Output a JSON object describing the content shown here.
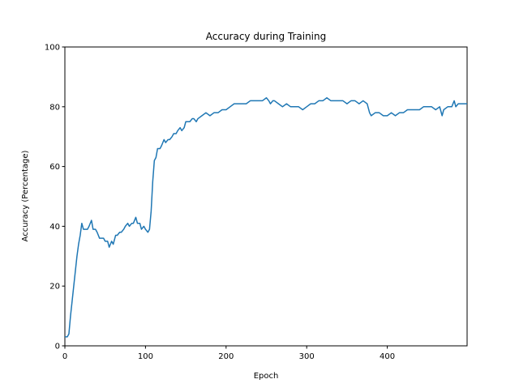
{
  "chart_data": {
    "type": "line",
    "title": "Accuracy during Training",
    "x_label": "Epoch",
    "y_label": "Accuracy (Percentage)",
    "color": "#1f77b4",
    "xlim": [
      0,
      499
    ],
    "ylim": [
      0,
      100
    ],
    "xticks": [
      0,
      100,
      200,
      300,
      400
    ],
    "yticks": [
      0,
      20,
      40,
      60,
      80,
      100
    ],
    "x": [
      0,
      3,
      5,
      7,
      9,
      11,
      13,
      15,
      17,
      19,
      21,
      23,
      25,
      28,
      30,
      33,
      35,
      38,
      40,
      43,
      45,
      48,
      50,
      53,
      55,
      58,
      60,
      63,
      65,
      68,
      70,
      73,
      75,
      78,
      80,
      83,
      85,
      88,
      90,
      93,
      95,
      98,
      100,
      103,
      105,
      107,
      109,
      111,
      113,
      115,
      118,
      120,
      123,
      125,
      128,
      130,
      133,
      135,
      138,
      140,
      143,
      145,
      148,
      150,
      155,
      158,
      160,
      163,
      165,
      170,
      175,
      180,
      185,
      190,
      195,
      200,
      205,
      210,
      215,
      220,
      225,
      230,
      235,
      240,
      245,
      250,
      253,
      255,
      258,
      260,
      265,
      270,
      275,
      280,
      285,
      290,
      295,
      300,
      305,
      310,
      315,
      320,
      325,
      330,
      335,
      340,
      345,
      350,
      355,
      360,
      365,
      370,
      375,
      378,
      380,
      385,
      390,
      395,
      400,
      405,
      410,
      415,
      420,
      425,
      430,
      435,
      440,
      445,
      450,
      455,
      460,
      465,
      468,
      470,
      475,
      480,
      483,
      485,
      488,
      490,
      495,
      499
    ],
    "values": [
      3,
      3,
      4,
      10,
      15,
      20,
      25,
      30,
      34,
      37,
      41,
      39,
      39,
      39,
      40,
      42,
      39,
      39,
      38,
      36,
      36,
      36,
      35,
      35,
      33,
      35,
      34,
      37,
      37,
      38,
      38,
      39,
      40,
      41,
      40,
      41,
      41,
      43,
      41,
      41,
      39,
      40,
      39,
      38,
      39,
      45,
      55,
      62,
      63,
      66,
      66,
      67,
      69,
      68,
      69,
      69,
      70,
      71,
      71,
      72,
      73,
      72,
      73,
      75,
      75,
      76,
      76,
      75,
      76,
      77,
      78,
      77,
      78,
      78,
      79,
      79,
      80,
      81,
      81,
      81,
      81,
      82,
      82,
      82,
      82,
      83,
      82,
      81,
      82,
      82,
      81,
      80,
      81,
      80,
      80,
      80,
      79,
      80,
      81,
      81,
      82,
      82,
      83,
      82,
      82,
      82,
      82,
      81,
      82,
      82,
      81,
      82,
      81,
      78,
      77,
      78,
      78,
      77,
      77,
      78,
      77,
      78,
      78,
      79,
      79,
      79,
      79,
      80,
      80,
      80,
      79,
      80,
      77,
      79,
      80,
      80,
      82,
      80,
      81,
      81,
      81,
      81
    ]
  }
}
